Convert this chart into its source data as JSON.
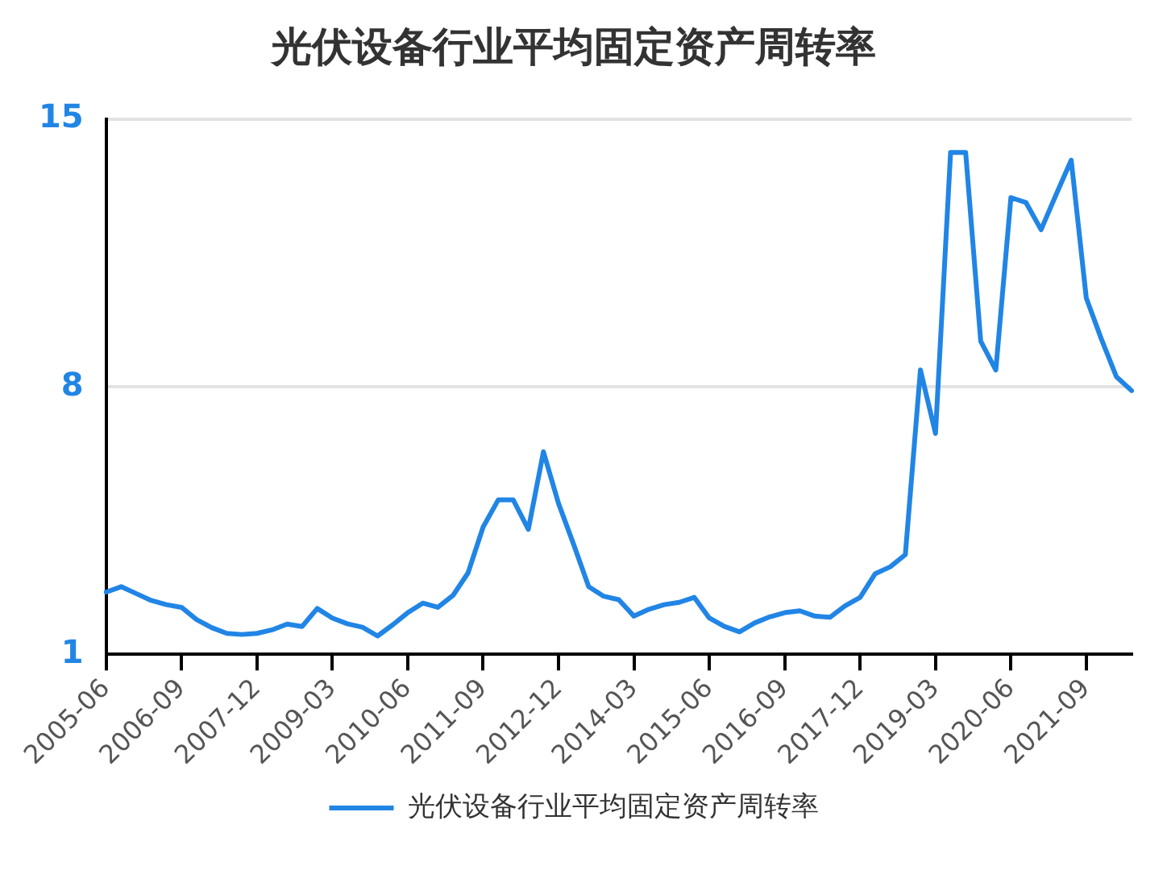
{
  "chart_data": {
    "type": "line",
    "title": "光伏设备行业平均固定资产周转率",
    "categories": [
      "2005-06",
      null,
      null,
      null,
      null,
      "2006-09",
      null,
      null,
      null,
      null,
      "2007-12",
      null,
      null,
      null,
      null,
      "2009-03",
      null,
      null,
      null,
      null,
      "2010-06",
      null,
      null,
      null,
      null,
      "2011-09",
      null,
      null,
      null,
      null,
      "2012-12",
      null,
      null,
      null,
      null,
      "2014-03",
      null,
      null,
      null,
      null,
      "2015-06",
      null,
      null,
      null,
      null,
      "2016-09",
      null,
      null,
      null,
      null,
      "2017-12",
      null,
      null,
      null,
      null,
      "2019-03",
      null,
      null,
      null,
      null,
      "2020-06",
      null,
      null,
      null,
      null,
      "2021-09",
      null,
      null,
      null
    ],
    "series": [
      {
        "name": "光伏设备行业平均固定资产周转率",
        "color": "#2185e5",
        "values": [
          2.63,
          2.77,
          2.59,
          2.41,
          2.3,
          2.23,
          1.91,
          1.7,
          1.55,
          1.52,
          1.55,
          1.64,
          1.79,
          1.73,
          2.2,
          1.95,
          1.8,
          1.71,
          1.48,
          1.77,
          2.09,
          2.34,
          2.23,
          2.54,
          3.13,
          4.33,
          5.04,
          5.04,
          4.27,
          6.3,
          4.95,
          3.88,
          2.77,
          2.52,
          2.43,
          2.0,
          2.18,
          2.3,
          2.36,
          2.49,
          1.95,
          1.73,
          1.59,
          1.82,
          1.98,
          2.09,
          2.14,
          2.0,
          1.97,
          2.27,
          2.49,
          3.11,
          3.29,
          3.61,
          8.44,
          6.78,
          14.13,
          14.13,
          9.19,
          8.44,
          12.95,
          12.82,
          12.11,
          13.03,
          13.93,
          10.32,
          9.25,
          8.26,
          7.9
        ]
      }
    ],
    "ylim": [
      1,
      15
    ],
    "yticks": [
      1,
      8,
      15
    ],
    "grid": "y",
    "legend": "bottom",
    "marker": "none",
    "line_style": "solid"
  }
}
